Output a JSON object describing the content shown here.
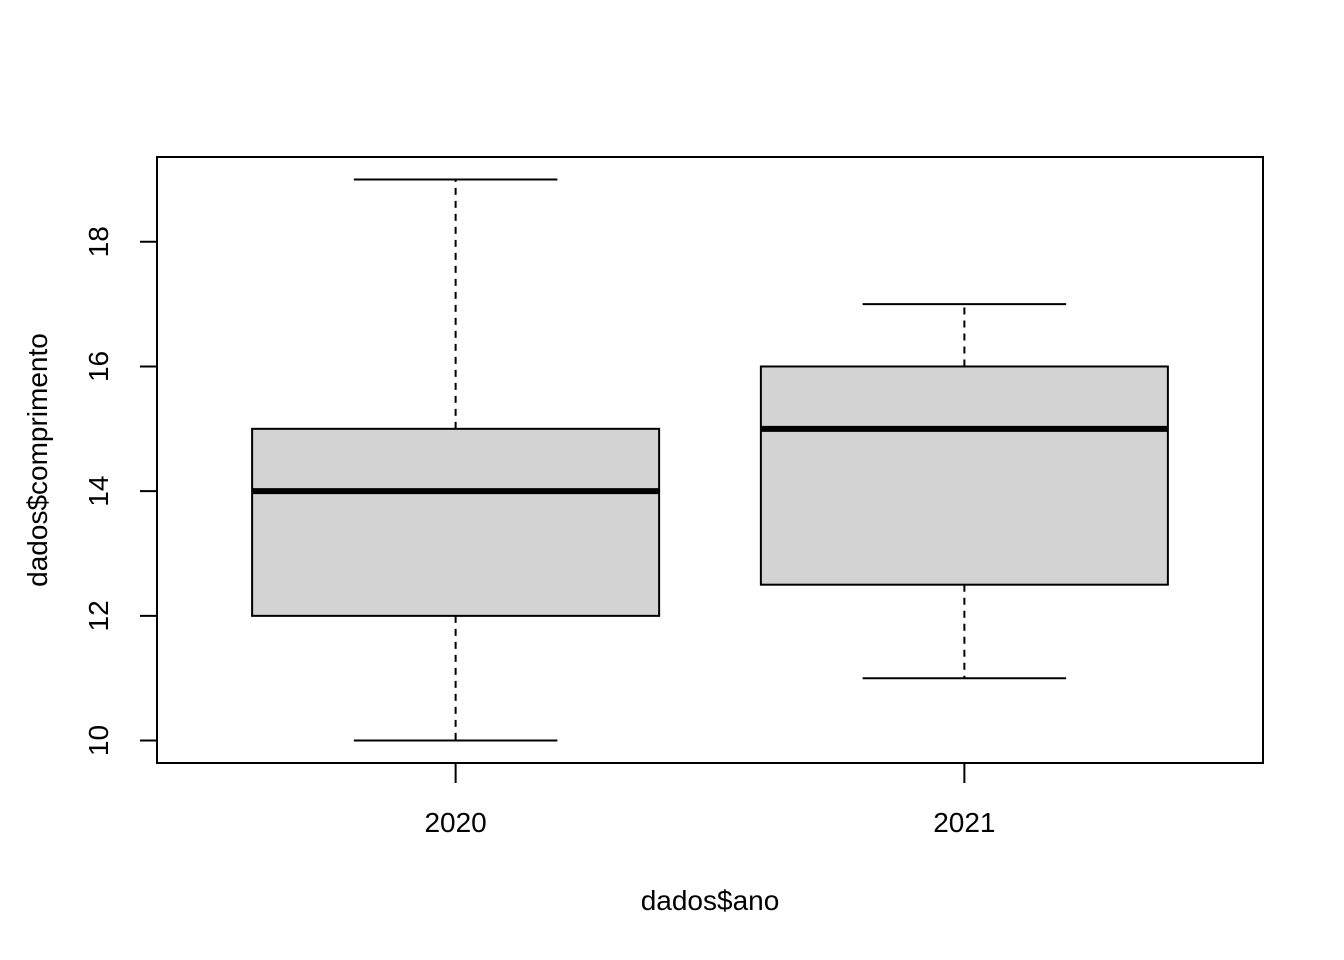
{
  "chart_data": {
    "type": "boxplot",
    "title": "",
    "xlabel": "dados$ano",
    "ylabel": "dados$comprimento",
    "categories": [
      "2020",
      "2021"
    ],
    "boxes": [
      {
        "category": "2020",
        "whisker_low": 10,
        "q1": 12,
        "median": 14,
        "q3": 15,
        "whisker_high": 19
      },
      {
        "category": "2021",
        "whisker_low": 11,
        "q1": 12.5,
        "median": 15,
        "q3": 16,
        "whisker_high": 17
      }
    ],
    "yticks": [
      "10",
      "12",
      "14",
      "16",
      "18"
    ],
    "ylim": [
      9.64,
      19.36
    ],
    "box_fill": "#d3d3d3",
    "grid": false,
    "legend": "none"
  }
}
